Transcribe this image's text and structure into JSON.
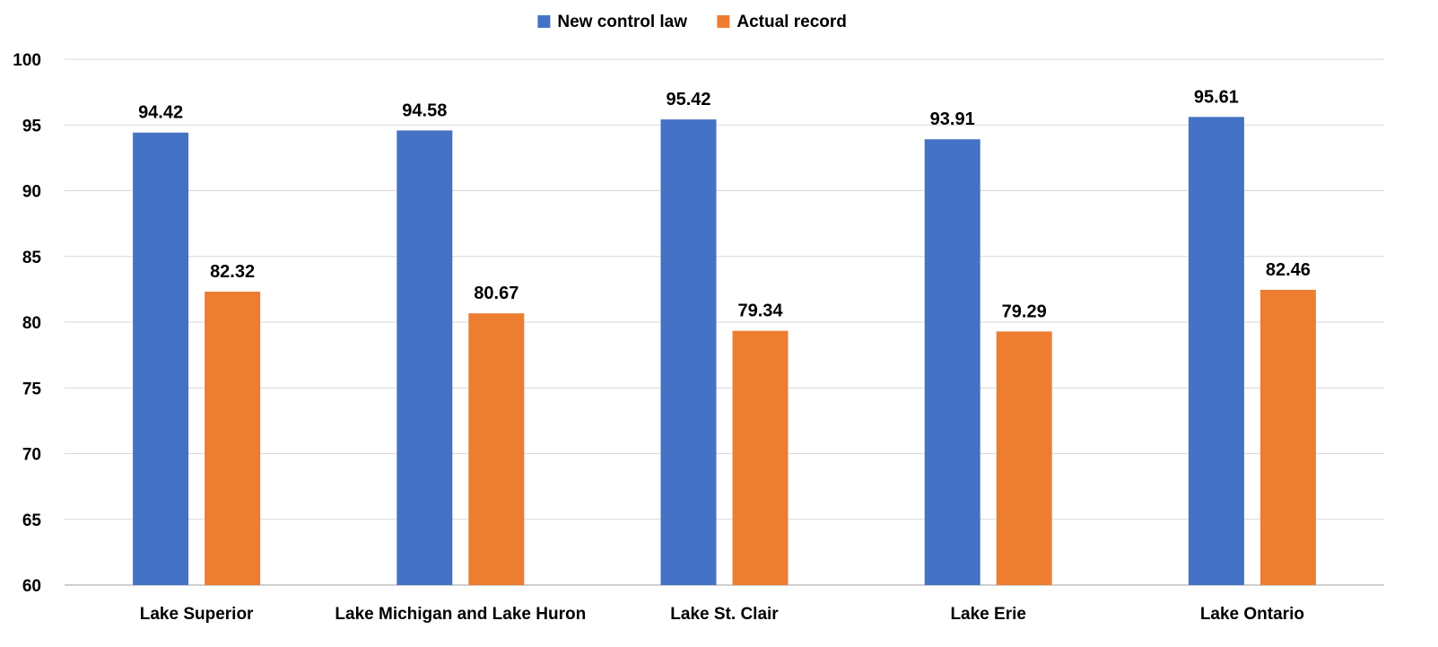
{
  "chart_data": {
    "type": "bar",
    "categories": [
      "Lake Superior",
      "Lake Michigan and Lake Huron",
      "Lake St. Clair",
      "Lake Erie",
      "Lake Ontario"
    ],
    "series": [
      {
        "name": "New control law",
        "color": "#4472C4",
        "values": [
          94.42,
          94.58,
          95.42,
          93.91,
          95.61
        ]
      },
      {
        "name": "Actual record",
        "color": "#ED7D31",
        "values": [
          82.32,
          80.67,
          79.34,
          79.29,
          82.46
        ]
      }
    ],
    "ylim": [
      60,
      100
    ],
    "yticks": [
      60,
      65,
      70,
      75,
      80,
      85,
      90,
      95,
      100
    ],
    "legend_position": "top-center",
    "grid": true
  }
}
